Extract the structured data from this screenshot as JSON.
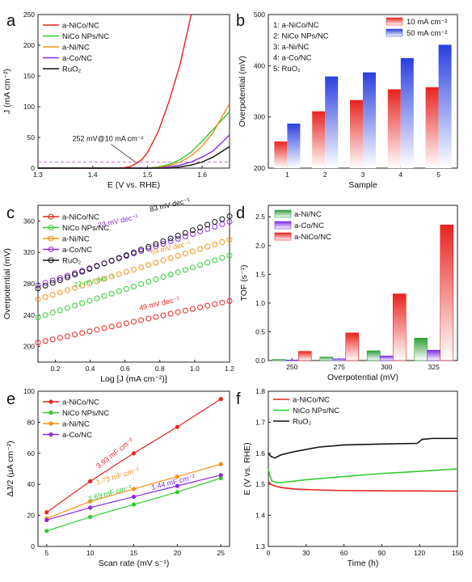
{
  "figure": {
    "panel_letters": [
      "a",
      "b",
      "c",
      "d",
      "e",
      "f"
    ]
  },
  "chart_data": [
    {
      "panel": "a",
      "type": "line",
      "xlabel": "E (V vs. RHE)",
      "ylabel": "J (mA cm⁻²)",
      "xlim": [
        1.3,
        1.65
      ],
      "ylim": [
        0,
        250
      ],
      "xticks": [
        1.3,
        1.4,
        1.5,
        1.6
      ],
      "yticks": [
        0,
        50,
        100,
        150,
        200,
        250
      ],
      "legend_position": "top-left",
      "series": [
        {
          "name": "a-NiCo/NC",
          "color": "#e8231f",
          "x": [
            1.3,
            1.44,
            1.46,
            1.47,
            1.48,
            1.49,
            1.5,
            1.52,
            1.54,
            1.56,
            1.57,
            1.58
          ],
          "y": [
            0,
            0,
            1,
            3,
            8,
            14,
            25,
            60,
            110,
            170,
            210,
            250
          ]
        },
        {
          "name": "NiCo NPs/NC",
          "color": "#2ecc2e",
          "x": [
            1.3,
            1.5,
            1.52,
            1.54,
            1.56,
            1.58,
            1.6,
            1.62,
            1.65
          ],
          "y": [
            0,
            0,
            2,
            6,
            14,
            26,
            44,
            63,
            92
          ]
        },
        {
          "name": "a-Ni/NC",
          "color": "#f39019",
          "x": [
            1.3,
            1.5,
            1.52,
            1.54,
            1.56,
            1.58,
            1.6,
            1.62,
            1.65
          ],
          "y": [
            0,
            0,
            1,
            4,
            10,
            20,
            36,
            58,
            105
          ]
        },
        {
          "name": "a-Co/NC",
          "color": "#8a2be2",
          "x": [
            1.3,
            1.52,
            1.54,
            1.56,
            1.58,
            1.6,
            1.62,
            1.65
          ],
          "y": [
            0,
            0,
            2,
            5,
            10,
            18,
            28,
            54
          ]
        },
        {
          "name": "RuO₂",
          "color": "#111111",
          "x": [
            1.3,
            1.54,
            1.56,
            1.58,
            1.6,
            1.62,
            1.65
          ],
          "y": [
            0,
            0,
            2,
            5,
            10,
            18,
            35
          ]
        }
      ],
      "reference_line": {
        "y": 10,
        "color": "#c070d0"
      },
      "annotation": "252 mV@10 mA cm⁻²"
    },
    {
      "panel": "b",
      "type": "bar",
      "xlabel": "Sample",
      "ylabel": "Overpotential (mV)",
      "categories": [
        "1",
        "2",
        "3",
        "4",
        "5"
      ],
      "ylim": [
        200,
        500
      ],
      "yticks": [
        200,
        300,
        400,
        500
      ],
      "sample_key": [
        "1: a-NiCo/NC",
        "2: NiCo NPs/NC",
        "3: a-Ni/NC",
        "4: a-Co/NC",
        "5: RuO₂"
      ],
      "series": [
        {
          "name": "10 mA cm⁻²",
          "color": "#e8231f",
          "values": [
            252,
            311,
            333,
            354,
            358
          ]
        },
        {
          "name": "50 mA cm⁻²",
          "color": "#2a3fe0",
          "values": [
            287,
            379,
            387,
            415,
            441
          ]
        }
      ]
    },
    {
      "panel": "c",
      "type": "scatter",
      "xlabel": "Log [J (mA cm⁻²)]",
      "ylabel": "Overpotential (mV)",
      "xlim": [
        0.1,
        1.2
      ],
      "ylim": [
        180,
        380
      ],
      "xticks": [
        0.2,
        0.4,
        0.6,
        0.8,
        1.0,
        1.2
      ],
      "yticks": [
        200,
        240,
        280,
        320,
        360
      ],
      "legend_position": "top-left",
      "series": [
        {
          "name": "a-NiCo/NC",
          "color": "#e8231f",
          "slope": "49 mV dec⁻¹",
          "x": [
            0.1,
            1.2
          ],
          "y": [
            205,
            258
          ]
        },
        {
          "name": "NiCo NPs/NC",
          "color": "#2ecc2e",
          "slope": "72 mV dec⁻¹",
          "x": [
            0.1,
            1.2
          ],
          "y": [
            237,
            316
          ]
        },
        {
          "name": "a-Ni/NC",
          "color": "#f39019",
          "slope": "69 mV dec⁻¹",
          "x": [
            0.1,
            1.2
          ],
          "y": [
            260,
            336
          ]
        },
        {
          "name": "a-Co/NC",
          "color": "#8a2be2",
          "slope": "73 mV dec⁻¹",
          "x": [
            0.1,
            1.2
          ],
          "y": [
            278,
            359
          ]
        },
        {
          "name": "RuO₂",
          "color": "#111111",
          "slope": "83 mV dec⁻¹",
          "x": [
            0.1,
            1.2
          ],
          "y": [
            274,
            366
          ]
        }
      ]
    },
    {
      "panel": "d",
      "type": "bar",
      "xlabel": "Overpotential (mV)",
      "ylabel": "TOF (s⁻¹)",
      "categories": [
        "250",
        "275",
        "300",
        "325"
      ],
      "ylim": [
        0,
        2.7
      ],
      "yticks": [
        0.0,
        0.5,
        1.0,
        1.5,
        2.0,
        2.5
      ],
      "legend_position": "top-left",
      "series": [
        {
          "name": "a-Ni/NC",
          "color": "#2e9e3a",
          "values": [
            0.02,
            0.06,
            0.17,
            0.39
          ]
        },
        {
          "name": "a-Co/NC",
          "color": "#7a2be2",
          "values": [
            0.01,
            0.03,
            0.08,
            0.18
          ]
        },
        {
          "name": "a-NiCo/NC",
          "color": "#e8231f",
          "values": [
            0.16,
            0.48,
            1.16,
            2.36
          ]
        }
      ]
    },
    {
      "panel": "e",
      "type": "line",
      "xlabel": "Scan rate (mV s⁻¹)",
      "ylabel": "ΔJ/2 (μA cm⁻²)",
      "xlim": [
        4,
        26
      ],
      "ylim": [
        0,
        100
      ],
      "xticks": [
        5,
        10,
        15,
        20,
        25
      ],
      "yticks": [
        0,
        20,
        40,
        60,
        80,
        100
      ],
      "legend_position": "top-left",
      "series": [
        {
          "name": "a-NiCo/NC",
          "color": "#e8231f",
          "capacitance": "3.93 mF cm⁻²",
          "x": [
            5,
            10,
            15,
            20,
            25
          ],
          "y": [
            22,
            42,
            60,
            77,
            95
          ]
        },
        {
          "name": "NiCo NPs/NC",
          "color": "#2ecc2e",
          "capacitance": "1.69 mF cm⁻²",
          "x": [
            5,
            10,
            15,
            20,
            25
          ],
          "y": [
            10,
            19,
            27,
            35,
            44
          ]
        },
        {
          "name": "a-Ni/NC",
          "color": "#f39019",
          "capacitance": "1.73 mF cm⁻²",
          "x": [
            5,
            10,
            15,
            20,
            25
          ],
          "y": [
            18,
            29,
            37,
            45,
            53
          ]
        },
        {
          "name": "a-Co/NC",
          "color": "#8a2be2",
          "capacitance": "1.44 mF cm⁻²",
          "x": [
            5,
            10,
            15,
            20,
            25
          ],
          "y": [
            17,
            25,
            32,
            39,
            46
          ]
        }
      ]
    },
    {
      "panel": "f",
      "type": "line",
      "xlabel": "Time (h)",
      "ylabel": "E (V vs. RHE)",
      "xlim": [
        0,
        150
      ],
      "ylim": [
        1.3,
        1.8
      ],
      "xticks": [
        0,
        30,
        60,
        90,
        120,
        150
      ],
      "yticks": [
        1.3,
        1.4,
        1.5,
        1.6,
        1.7,
        1.8
      ],
      "legend_position": "top-left",
      "series": [
        {
          "name": "a-NiCo/NC",
          "color": "#e8231f",
          "x": [
            0,
            2,
            5,
            10,
            20,
            40,
            60,
            100,
            150
          ],
          "y": [
            1.51,
            1.5,
            1.495,
            1.49,
            1.485,
            1.482,
            1.48,
            1.479,
            1.478
          ]
        },
        {
          "name": "NiCo NPs/NC",
          "color": "#2ecc2e",
          "x": [
            0,
            1,
            3,
            8,
            15,
            30,
            60,
            90,
            120,
            150
          ],
          "y": [
            1.55,
            1.53,
            1.51,
            1.505,
            1.508,
            1.515,
            1.525,
            1.535,
            1.542,
            1.55
          ]
        },
        {
          "name": "RuO₂",
          "color": "#111111",
          "x": [
            0,
            2,
            5,
            10,
            20,
            40,
            60,
            90,
            118,
            122,
            130,
            150
          ],
          "y": [
            1.6,
            1.59,
            1.585,
            1.595,
            1.605,
            1.62,
            1.627,
            1.63,
            1.632,
            1.645,
            1.648,
            1.648
          ]
        }
      ]
    }
  ]
}
